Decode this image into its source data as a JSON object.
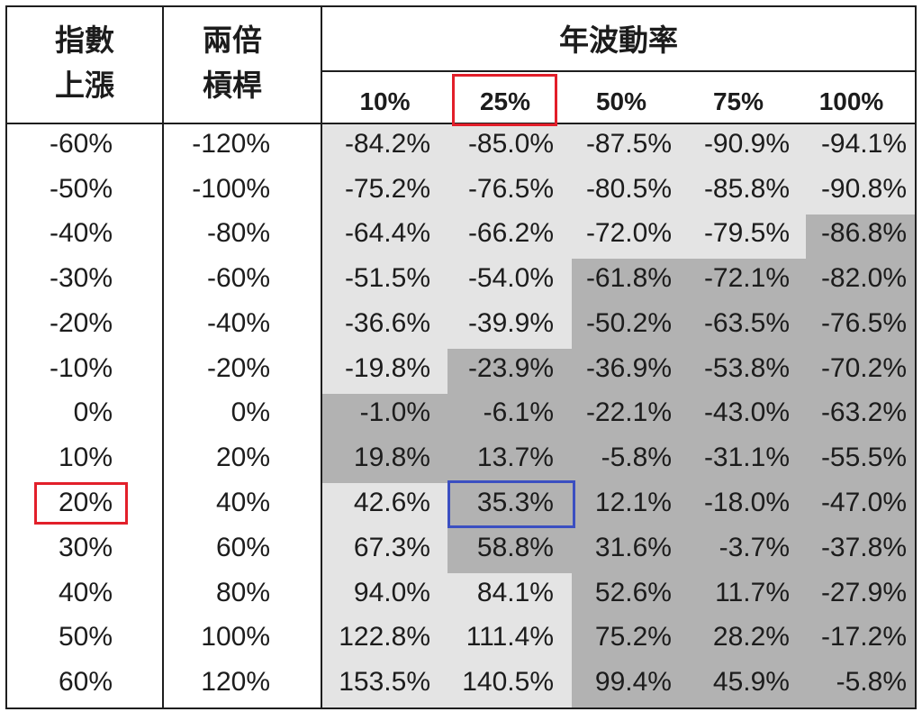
{
  "chart_data": {
    "type": "table",
    "headers": {
      "index_change": [
        "指數",
        "上漲"
      ],
      "leveraged_2x": [
        "兩倍",
        "槓桿"
      ],
      "volatility_group": "年波動率"
    },
    "columns": [
      "10%",
      "25%",
      "50%",
      "75%",
      "100%"
    ],
    "rows": [
      {
        "index": "-60%",
        "leveraged": "-120%",
        "values": [
          "-84.2%",
          "-85.0%",
          "-87.5%",
          "-90.9%",
          "-94.1%"
        ]
      },
      {
        "index": "-50%",
        "leveraged": "-100%",
        "values": [
          "-75.2%",
          "-76.5%",
          "-80.5%",
          "-85.8%",
          "-90.8%"
        ]
      },
      {
        "index": "-40%",
        "leveraged": "-80%",
        "values": [
          "-64.4%",
          "-66.2%",
          "-72.0%",
          "-79.5%",
          "-86.8%"
        ]
      },
      {
        "index": "-30%",
        "leveraged": "-60%",
        "values": [
          "-51.5%",
          "-54.0%",
          "-61.8%",
          "-72.1%",
          "-82.0%"
        ]
      },
      {
        "index": "-20%",
        "leveraged": "-40%",
        "values": [
          "-36.6%",
          "-39.9%",
          "-50.2%",
          "-63.5%",
          "-76.5%"
        ]
      },
      {
        "index": "-10%",
        "leveraged": "-20%",
        "values": [
          "-19.8%",
          "-23.9%",
          "-36.9%",
          "-53.8%",
          "-70.2%"
        ]
      },
      {
        "index": "0%",
        "leveraged": "0%",
        "values": [
          "-1.0%",
          "-6.1%",
          "-22.1%",
          "-43.0%",
          "-63.2%"
        ]
      },
      {
        "index": "10%",
        "leveraged": "20%",
        "values": [
          "19.8%",
          "13.7%",
          "-5.8%",
          "-31.1%",
          "-55.5%"
        ]
      },
      {
        "index": "20%",
        "leveraged": "40%",
        "values": [
          "42.6%",
          "35.3%",
          "12.1%",
          "-18.0%",
          "-47.0%"
        ]
      },
      {
        "index": "30%",
        "leveraged": "60%",
        "values": [
          "67.3%",
          "58.8%",
          "31.6%",
          "-3.7%",
          "-37.8%"
        ]
      },
      {
        "index": "40%",
        "leveraged": "80%",
        "values": [
          "94.0%",
          "84.1%",
          "52.6%",
          "11.7%",
          "-27.9%"
        ]
      },
      {
        "index": "50%",
        "leveraged": "100%",
        "values": [
          "122.8%",
          "111.4%",
          "75.2%",
          "28.2%",
          "-17.2%"
        ]
      },
      {
        "index": "60%",
        "leveraged": "120%",
        "values": [
          "153.5%",
          "140.5%",
          "99.4%",
          "45.9%",
          "-5.8%"
        ]
      }
    ]
  },
  "colors": {
    "text": "#1c1c1c",
    "rule": "#1e1e1e",
    "cell_light": "#e4e4e4",
    "cell_dark": "#b2b2b2",
    "highlight_red": "#e21f2a",
    "highlight_blue": "#3b4fc1"
  }
}
